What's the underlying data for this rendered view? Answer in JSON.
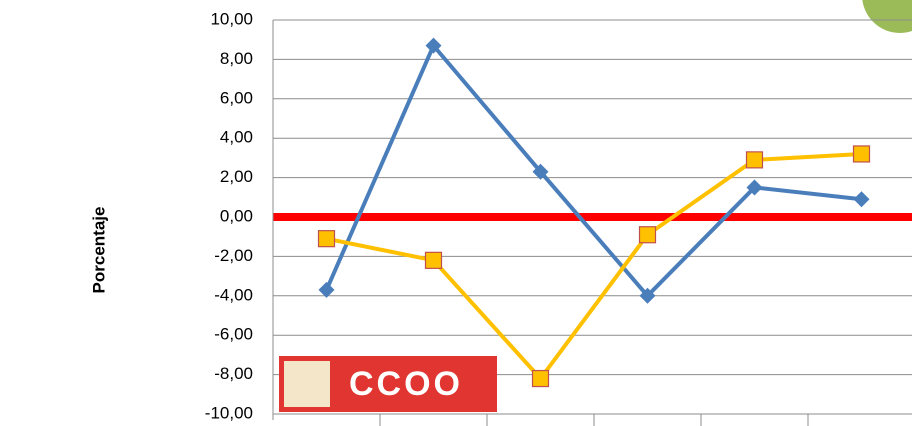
{
  "chart_data": {
    "type": "line",
    "y_label": "Porcentaje",
    "logo": "CCOO",
    "categories": [
      null,
      null,
      null,
      null,
      null,
      null
    ],
    "series": [
      {
        "color": "#4a7ebb",
        "marker": "diamond",
        "values": [
          -3.7,
          8.7,
          2.3,
          -4.0,
          1.5,
          0.9
        ]
      },
      {
        "color": "#ffc000",
        "marker": "square",
        "values": [
          -1.1,
          -2.2,
          -8.2,
          -0.9,
          2.9,
          3.2
        ]
      }
    ],
    "ylim": [
      -10,
      10
    ],
    "yticks": [
      {
        "value": -10,
        "label": "-10,00"
      },
      {
        "value": -8,
        "label": "-8,00"
      },
      {
        "value": -6,
        "label": "-6,00"
      },
      {
        "value": -4,
        "label": "-4,00"
      },
      {
        "value": -2,
        "label": "-2,00"
      },
      {
        "value": 0,
        "label": "0,00"
      },
      {
        "value": 2,
        "label": "2,00"
      },
      {
        "value": 4,
        "label": "4,00"
      },
      {
        "value": 6,
        "label": "6,00"
      },
      {
        "value": 8,
        "label": "8,00"
      },
      {
        "value": 10,
        "label": "10,00"
      }
    ],
    "grid": true,
    "zero_line_color": "#ff0000"
  }
}
